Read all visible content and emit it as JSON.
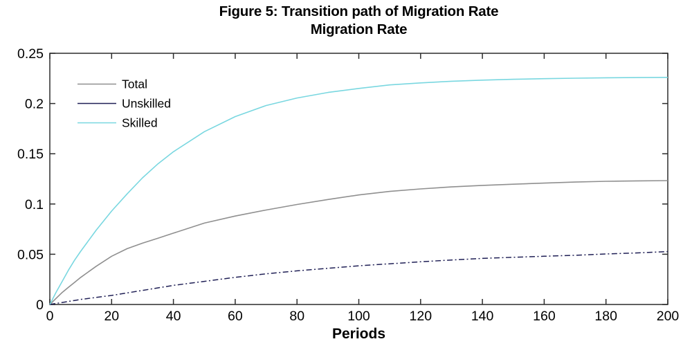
{
  "figure": {
    "title": "Figure 5: Transition path of Migration Rate",
    "subtitle": "Migration Rate",
    "xlabel": "Periods"
  },
  "chart_data": {
    "type": "line",
    "title": "Figure 5: Transition path of Migration Rate",
    "subtitle": "Migration Rate",
    "xlabel": "Periods",
    "ylabel": "",
    "xlim": [
      0,
      200
    ],
    "ylim": [
      0,
      0.25
    ],
    "xticks": [
      0,
      20,
      40,
      60,
      80,
      100,
      120,
      140,
      160,
      180,
      200
    ],
    "xtick_labels": [
      "0",
      "20",
      "40",
      "60",
      "80",
      "100",
      "120",
      "140",
      "160",
      "180",
      "200"
    ],
    "yticks": [
      0,
      0.05,
      0.1,
      0.15,
      0.2,
      0.25
    ],
    "ytick_labels": [
      "0",
      "0.05",
      "0.1",
      "0.15",
      "0.2",
      "0.25"
    ],
    "grid": false,
    "legend_position": "top-left-inside",
    "axis_color": "#2b2b2b",
    "x": [
      0,
      2,
      4,
      6,
      8,
      10,
      15,
      20,
      25,
      30,
      35,
      40,
      50,
      60,
      70,
      80,
      90,
      100,
      110,
      120,
      130,
      140,
      150,
      160,
      170,
      180,
      190,
      200
    ],
    "series": [
      {
        "name": "Total",
        "color": "#8f8f8f",
        "style": "solid",
        "values": [
          0,
          0.006,
          0.012,
          0.017,
          0.022,
          0.027,
          0.038,
          0.048,
          0.0555,
          0.061,
          0.066,
          0.071,
          0.081,
          0.088,
          0.094,
          0.0995,
          0.1045,
          0.109,
          0.1125,
          0.115,
          0.117,
          0.1185,
          0.1197,
          0.1208,
          0.1218,
          0.1226,
          0.123,
          0.1233
        ]
      },
      {
        "name": "Unskilled",
        "color": "#1f1f55",
        "style": "dashdot",
        "values": [
          0,
          0.001,
          0.002,
          0.003,
          0.004,
          0.005,
          0.007,
          0.009,
          0.0115,
          0.014,
          0.0165,
          0.019,
          0.023,
          0.027,
          0.0305,
          0.0335,
          0.036,
          0.0385,
          0.0405,
          0.0425,
          0.0443,
          0.0459,
          0.047,
          0.048,
          0.049,
          0.0503,
          0.0513,
          0.0527
        ]
      },
      {
        "name": "Skilled",
        "color": "#79d7e0",
        "style": "solid",
        "values": [
          0,
          0.012,
          0.023,
          0.034,
          0.044,
          0.053,
          0.074,
          0.093,
          0.11,
          0.126,
          0.14,
          0.152,
          0.172,
          0.187,
          0.198,
          0.2055,
          0.211,
          0.215,
          0.2185,
          0.2205,
          0.2222,
          0.2233,
          0.2241,
          0.2247,
          0.2252,
          0.2256,
          0.2258,
          0.226
        ]
      }
    ]
  }
}
